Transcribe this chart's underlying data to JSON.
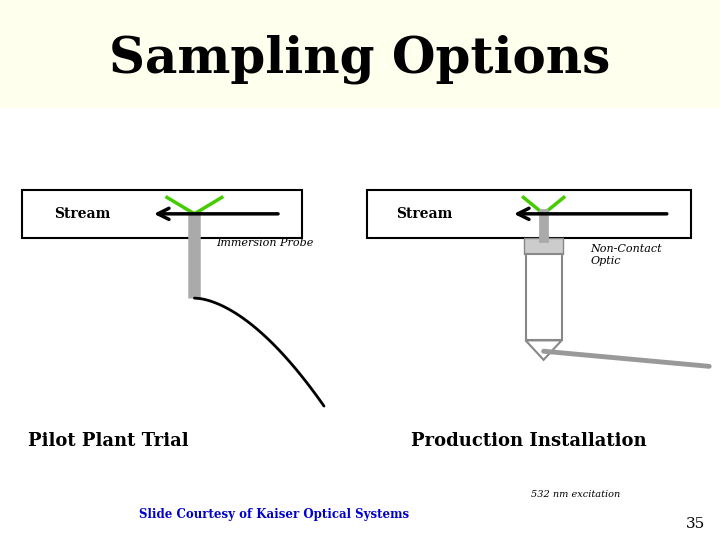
{
  "title": "Sampling Options",
  "title_fontsize": 36,
  "title_color": "#000000",
  "background_top": "#ffffee",
  "background_bottom": "#ffffff",
  "stream_label": "Stream",
  "immersion_probe_label": "Immersion Probe",
  "pilot_plant_label": "Pilot Plant Trial",
  "production_label": "Production Installation",
  "non_contact_label": "Non-Contact\nOptic",
  "slide_courtesy": "Slide Courtesy of Kaiser Optical Systems",
  "excitation_note": "532 nm excitation",
  "page_number": "35",
  "gray_color": "#aaaaaa",
  "green_color": "#44cc00",
  "black_color": "#000000",
  "dark_gray": "#555555",
  "blue_color": "#0000cc"
}
